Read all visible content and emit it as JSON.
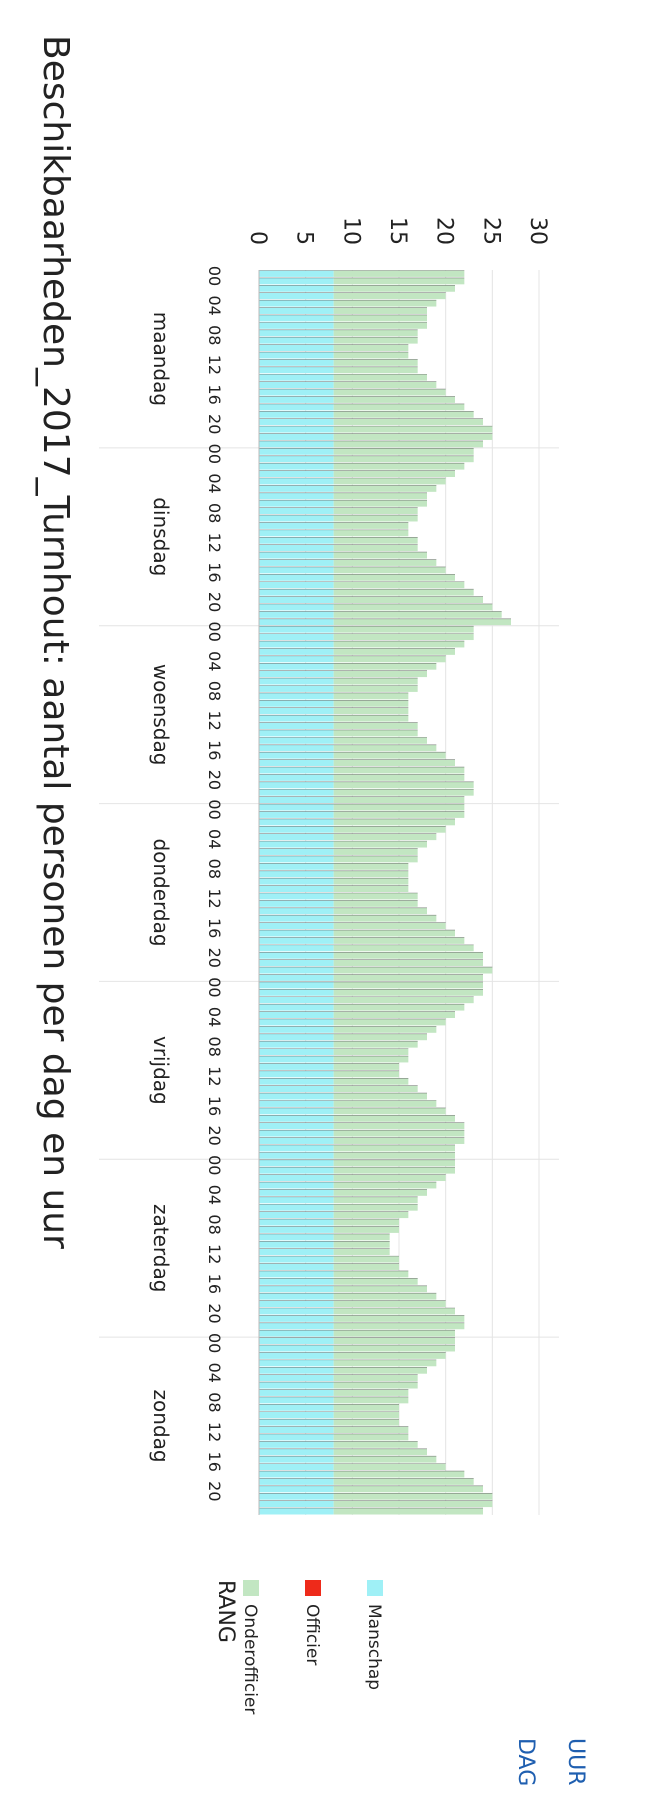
{
  "chart_data": {
    "type": "bar",
    "stacked": true,
    "orientation": "rotated-90",
    "title": "Beschikbaarheden_2017_Turnhout: aantal personen per dag en uur",
    "ylim": [
      0,
      30
    ],
    "yticks": [
      0,
      5,
      10,
      15,
      20,
      25,
      30
    ],
    "grid": true,
    "legend": {
      "title": "RANG",
      "placement": "right",
      "entries": [
        {
          "name": "Onderofficier",
          "color": "#c2e6c2"
        },
        {
          "name": "Officier",
          "color": "#ee2a1a"
        },
        {
          "name": "Manschap",
          "color": "#9ff0f6"
        }
      ]
    },
    "x_tick_labels_per_day": [
      "00",
      "04",
      "08",
      "12",
      "16",
      "20"
    ],
    "days": [
      "maandag",
      "dinsdag",
      "woensdag",
      "donderdag",
      "vrijdag",
      "zaterdag",
      "zondag"
    ],
    "x_header_labels": [
      "DAG",
      "UUR"
    ],
    "series_by_day": {
      "maandag": {
        "totals": [
          22,
          22,
          21,
          20,
          19,
          18,
          18,
          18,
          17,
          17,
          16,
          16,
          17,
          17,
          18,
          19,
          20,
          21,
          22,
          23,
          24,
          25,
          25,
          24
        ],
        "manschap": 8,
        "officier": 0
      },
      "dinsdag": {
        "totals": [
          23,
          23,
          22,
          21,
          20,
          19,
          18,
          18,
          17,
          17,
          16,
          16,
          17,
          17,
          18,
          19,
          20,
          21,
          22,
          23,
          24,
          25,
          26,
          27
        ],
        "manschap": 8,
        "officier": 0
      },
      "woensdag": {
        "totals": [
          23,
          23,
          22,
          21,
          20,
          19,
          18,
          17,
          17,
          16,
          16,
          16,
          16,
          17,
          17,
          18,
          19,
          20,
          21,
          22,
          22,
          23,
          23,
          22
        ],
        "manschap": 8,
        "officier": 0
      },
      "donderdag": {
        "totals": [
          22,
          22,
          21,
          20,
          19,
          18,
          17,
          17,
          16,
          16,
          16,
          16,
          17,
          17,
          18,
          19,
          20,
          21,
          22,
          23,
          24,
          24,
          25,
          24
        ],
        "manschap": 8,
        "officier": 0
      },
      "vrijdag": {
        "totals": [
          24,
          24,
          23,
          22,
          21,
          20,
          19,
          18,
          17,
          16,
          16,
          15,
          15,
          16,
          17,
          18,
          19,
          20,
          21,
          22,
          22,
          22,
          21,
          21
        ],
        "manschap": 8,
        "officier": 0
      },
      "zaterdag": {
        "totals": [
          21,
          21,
          20,
          19,
          18,
          17,
          17,
          16,
          15,
          15,
          14,
          14,
          14,
          15,
          15,
          16,
          17,
          18,
          19,
          20,
          21,
          22,
          22,
          21
        ],
        "manschap": 8,
        "officier": 0
      },
      "zondag": {
        "totals": [
          21,
          21,
          20,
          19,
          18,
          17,
          17,
          16,
          16,
          15,
          15,
          15,
          16,
          16,
          17,
          18,
          19,
          20,
          22,
          23,
          24,
          25,
          25,
          24
        ],
        "manschap": 8,
        "officier": 0
      }
    },
    "colors": {
      "onderofficier": "#c2e6c2",
      "officier": "#ee2a1a",
      "manschap": "#9ff0f6",
      "bar_outline": "#555555",
      "grid": "#e4e4e4",
      "text": "#222222",
      "header_text": "#1f5fb0"
    }
  }
}
